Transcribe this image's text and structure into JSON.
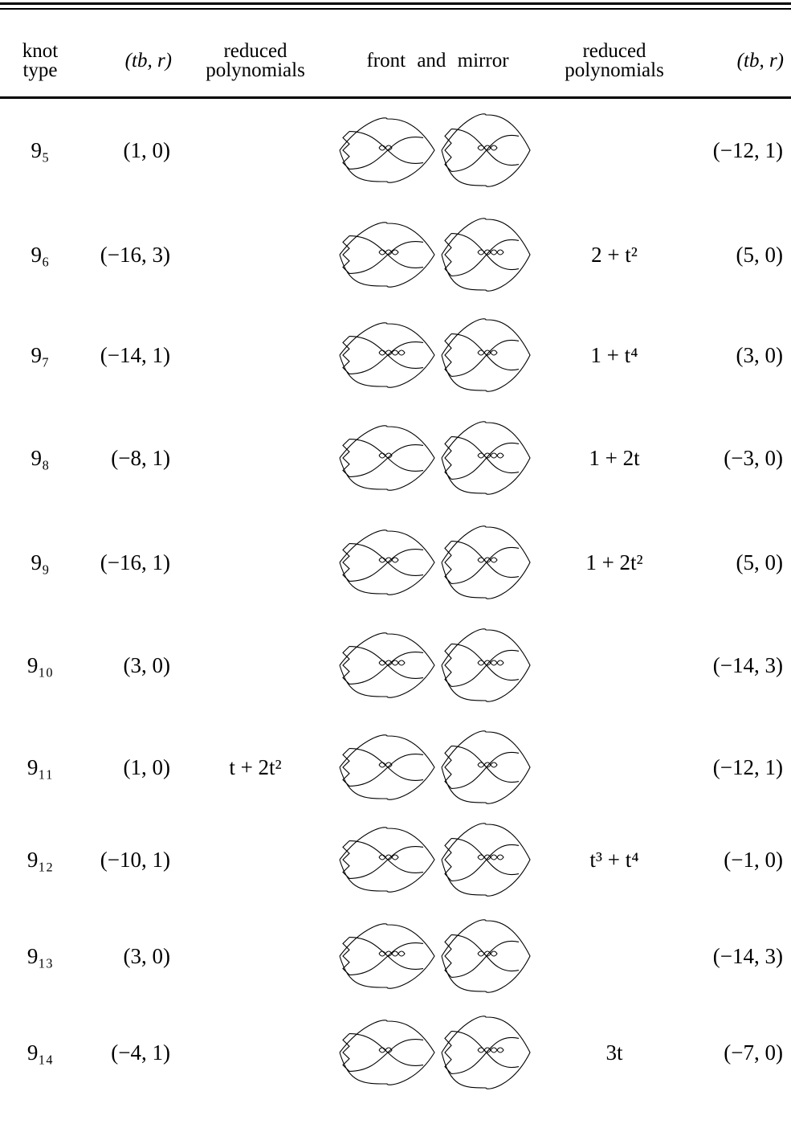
{
  "table": {
    "header": {
      "knot": "knot type",
      "tb_r_left": "(tb, r)",
      "poly_left": "reduced polynomials",
      "diagrams": "front and mirror",
      "poly_right": "reduced polynomials",
      "tb_r_right": "(tb, r)"
    },
    "rows": [
      {
        "knot": "9₅",
        "tb_r_left": "(1, 0)",
        "tb_r_right": "(−12, 1)"
      },
      {
        "knot": "9₆",
        "tb_r_left": "(−16, 3)",
        "poly_right": "2 + t²",
        "tb_r_right": "(5, 0)"
      },
      {
        "knot": "9₇",
        "tb_r_left": "(−14, 1)",
        "poly_right": "1 + t⁴",
        "tb_r_right": "(3, 0)"
      },
      {
        "knot": "9₈",
        "tb_r_left": "(−8, 1)",
        "poly_right": "1 + 2t",
        "tb_r_right": "(−3, 0)"
      },
      {
        "knot": "9₉",
        "tb_r_left": "(−16, 1)",
        "poly_right": "1 + 2t²",
        "tb_r_right": "(5, 0)"
      },
      {
        "knot": "9₁₀",
        "tb_r_left": "(3, 0)",
        "tb_r_right": "(−14, 3)"
      },
      {
        "knot": "9₁₁",
        "tb_r_left": "(1, 0)",
        "poly_left": "t + 2t²",
        "tb_r_right": "(−12, 1)"
      },
      {
        "knot": "9₁₂",
        "tb_r_left": "(−10, 1)",
        "poly_right": "t³ + t⁴",
        "tb_r_right": "(−1, 0)"
      },
      {
        "knot": "9₁₃",
        "tb_r_left": "(3, 0)",
        "tb_r_right": "(−14, 3)"
      },
      {
        "knot": "9₁₄",
        "tb_r_left": "(−4, 1)",
        "poly_right": "3t",
        "tb_r_right": "(−7, 0)"
      }
    ]
  }
}
